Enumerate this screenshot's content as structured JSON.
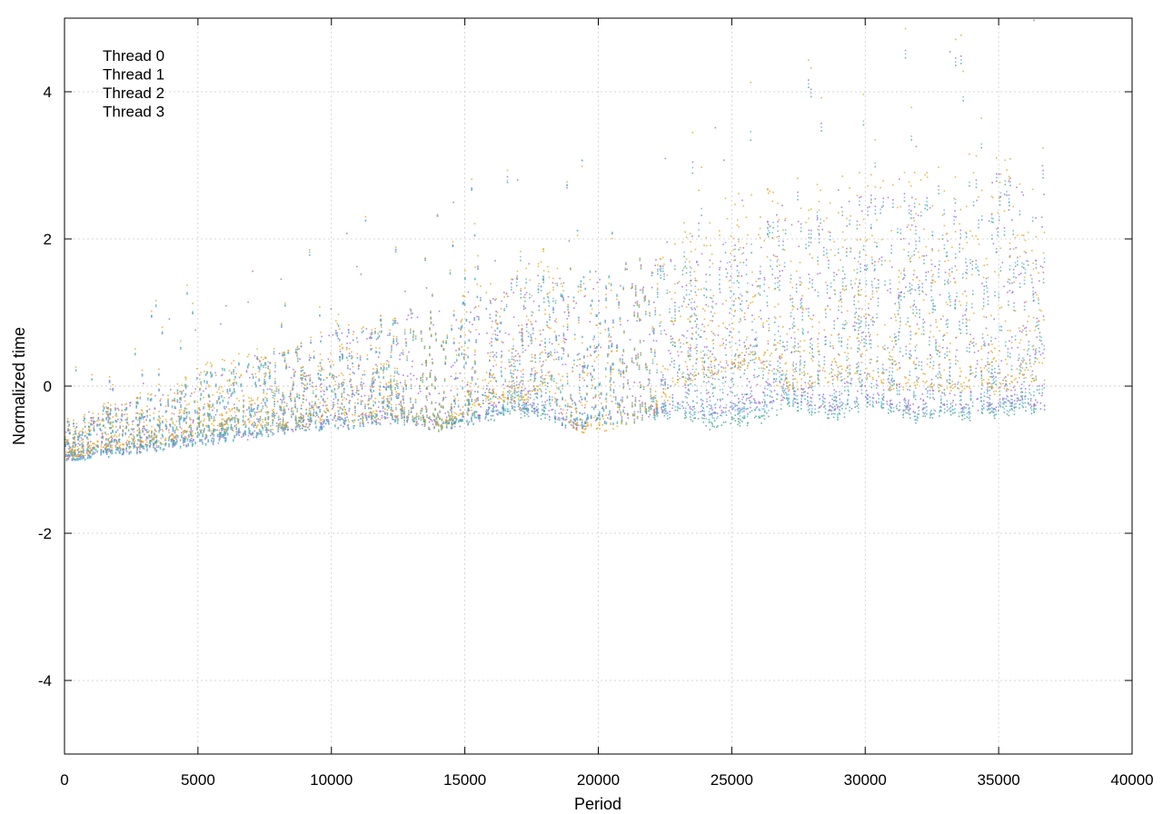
{
  "chart_data": {
    "type": "scatter",
    "xlabel": "Period",
    "ylabel": "Normalized time",
    "xlim": [
      0,
      40000
    ],
    "ylim": [
      -5,
      5
    ],
    "xticks": [
      0,
      5000,
      10000,
      15000,
      20000,
      25000,
      30000,
      35000,
      40000
    ],
    "yticks": [
      -4,
      -2,
      0,
      2,
      4
    ],
    "grid": true,
    "legend_position": "top-left",
    "data_extent_x": [
      0,
      36700
    ],
    "series": [
      {
        "name": "Thread 0",
        "color": "#9b5fd0",
        "x": [
          0,
          1000,
          2000,
          3000,
          4000,
          5000,
          6000,
          7000,
          8000,
          9000,
          10000,
          11000,
          12000,
          13000,
          14000,
          15000,
          16000,
          17000,
          18000,
          19000,
          20000,
          21000,
          22000,
          23000,
          24000,
          25000,
          26000,
          27000,
          28000,
          29000,
          30000,
          31000,
          32000,
          33000,
          34000,
          35000,
          36000,
          36700
        ],
        "y": [
          -0.95,
          -0.85,
          -0.8,
          -0.78,
          -0.75,
          -0.7,
          -0.65,
          -0.6,
          -0.55,
          -0.5,
          -0.45,
          -0.42,
          -0.4,
          -0.4,
          -0.5,
          -0.4,
          -0.3,
          -0.2,
          -0.3,
          -0.5,
          -0.4,
          -0.35,
          -0.3,
          -0.2,
          -0.3,
          -0.25,
          -0.2,
          -0.1,
          -0.2,
          -0.25,
          -0.1,
          -0.2,
          -0.3,
          -0.2,
          -0.25,
          -0.2,
          -0.15,
          -0.2
        ]
      },
      {
        "name": "Thread 1",
        "color": "#3aa08c",
        "x": [
          0,
          1000,
          2000,
          3000,
          4000,
          5000,
          6000,
          7000,
          8000,
          9000,
          10000,
          11000,
          12000,
          13000,
          14000,
          15000,
          16000,
          17000,
          18000,
          19000,
          20000,
          21000,
          22000,
          23000,
          24000,
          25000,
          26000,
          27000,
          28000,
          29000,
          30000,
          31000,
          32000,
          33000,
          34000,
          35000,
          36000,
          36700
        ],
        "y": [
          -0.93,
          -0.86,
          -0.82,
          -0.78,
          -0.72,
          -0.68,
          -0.62,
          -0.58,
          -0.52,
          -0.5,
          -0.48,
          -0.45,
          -0.42,
          -0.45,
          -0.5,
          -0.42,
          -0.35,
          -0.3,
          -0.35,
          -0.45,
          -0.42,
          -0.4,
          -0.35,
          -0.3,
          -0.5,
          -0.45,
          -0.4,
          -0.2,
          -0.3,
          -0.35,
          -0.2,
          -0.3,
          -0.4,
          -0.3,
          -0.35,
          -0.3,
          -0.25,
          -0.3
        ]
      },
      {
        "name": "Thread 2",
        "color": "#62b2dd",
        "x": [
          0,
          1000,
          2000,
          3000,
          4000,
          5000,
          6000,
          7000,
          8000,
          9000,
          10000,
          11000,
          12000,
          13000,
          14000,
          15000,
          16000,
          17000,
          18000,
          19000,
          20000,
          21000,
          22000,
          23000,
          24000,
          25000,
          26000,
          27000,
          28000,
          29000,
          30000,
          31000,
          32000,
          33000,
          34000,
          35000,
          36000,
          36700
        ],
        "y": [
          -0.94,
          -0.87,
          -0.83,
          -0.8,
          -0.74,
          -0.7,
          -0.64,
          -0.6,
          -0.55,
          -0.45,
          -0.5,
          -0.45,
          -0.4,
          -0.42,
          -0.48,
          -0.4,
          -0.35,
          -0.25,
          -0.3,
          -0.45,
          -0.4,
          -0.38,
          -0.32,
          -0.25,
          -0.4,
          -0.3,
          -0.3,
          -0.15,
          -0.25,
          -0.3,
          -0.15,
          -0.25,
          -0.35,
          -0.25,
          -0.3,
          -0.25,
          -0.2,
          -0.25
        ]
      },
      {
        "name": "Thread 3",
        "color": "#e0a31c",
        "x": [
          0,
          1000,
          2000,
          3000,
          4000,
          5000,
          6000,
          7000,
          8000,
          9000,
          10000,
          11000,
          12000,
          13000,
          14000,
          15000,
          16000,
          17000,
          18000,
          19000,
          20000,
          21000,
          22000,
          23000,
          24000,
          25000,
          26000,
          27000,
          28000,
          29000,
          30000,
          31000,
          32000,
          33000,
          34000,
          35000,
          36000,
          36700
        ],
        "y": [
          -0.9,
          -0.8,
          -0.75,
          -0.72,
          -0.65,
          -0.55,
          -0.5,
          -0.45,
          -0.5,
          -0.45,
          -0.3,
          -0.4,
          -0.35,
          -0.4,
          -0.5,
          -0.3,
          -0.1,
          -0.2,
          0.1,
          -0.5,
          -0.55,
          -0.4,
          -0.3,
          0.1,
          0.2,
          0.3,
          0.4,
          0.0,
          0.1,
          0.2,
          0.2,
          0.0,
          0.1,
          0.0,
          0.1,
          0.0,
          0.2,
          0.1
        ]
      }
    ]
  }
}
